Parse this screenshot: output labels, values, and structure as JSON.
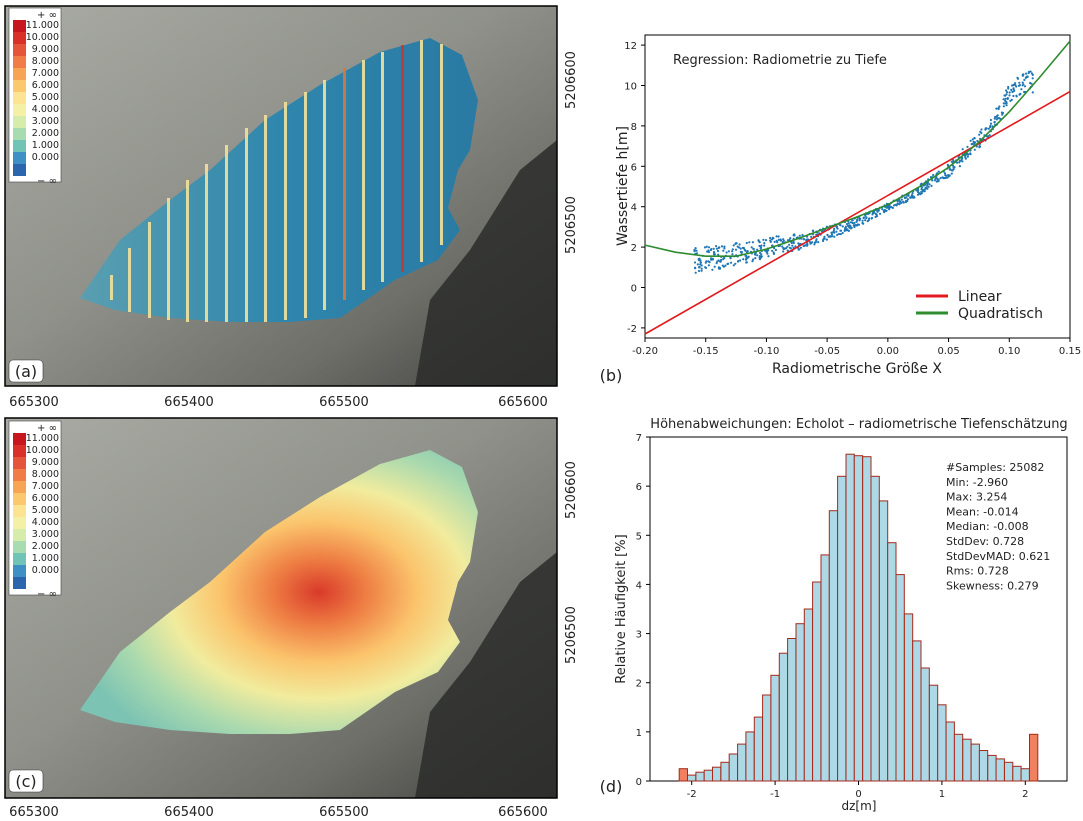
{
  "panel_labels": {
    "a": "(a)",
    "b": "(b)",
    "c": "(c)",
    "d": "(d)"
  },
  "map_axes": {
    "x_ticks": [
      "665300",
      "665400",
      "665500",
      "665600"
    ],
    "y_ticks": [
      "5206600",
      "5206500"
    ]
  },
  "depth_legend": {
    "top_label": "+ ∞",
    "bottom_label": "− ∞",
    "classes": [
      {
        "label": "11.000",
        "color": "#c8161e"
      },
      {
        "label": "10.000",
        "color": "#d9312a"
      },
      {
        "label": "9.000",
        "color": "#e4553a"
      },
      {
        "label": "8.000",
        "color": "#ef7d45"
      },
      {
        "label": "7.000",
        "color": "#f7a555"
      },
      {
        "label": "6.000",
        "color": "#fbc86e"
      },
      {
        "label": "5.000",
        "color": "#fde493"
      },
      {
        "label": "4.000",
        "color": "#f4f0a6"
      },
      {
        "label": "3.000",
        "color": "#d5ecaa"
      },
      {
        "label": "2.000",
        "color": "#a8dbb0"
      },
      {
        "label": "1.000",
        "color": "#6fc4b6"
      },
      {
        "label": "0.000",
        "color": "#3d8fc4"
      },
      {
        "label": "",
        "color": "#2a65ad"
      }
    ]
  },
  "chart_data": [
    {
      "type": "scatter",
      "title": "Regression: Radiometrie zu Tiefe",
      "xlabel": "Radiometrische Größe X",
      "ylabel": "Wassertiefe h[m]",
      "xlim": [
        -0.2,
        0.15
      ],
      "ylim": [
        -2.5,
        12.5
      ],
      "x_ticks": [
        "-0.20",
        "-0.15",
        "-0.10",
        "-0.05",
        "0.00",
        "0.05",
        "0.10",
        "0.15"
      ],
      "y_ticks": [
        "-2",
        "0",
        "2",
        "4",
        "6",
        "8",
        "10",
        "12"
      ],
      "legend_position": "lower-right",
      "series": [
        {
          "name": "Linear",
          "kind": "line",
          "color": "#e31a1c",
          "x": [
            -0.2,
            0.15
          ],
          "y": [
            -2.3,
            9.7
          ]
        },
        {
          "name": "Quadratisch",
          "kind": "line",
          "color": "#2e8b2e",
          "x": [
            -0.2,
            -0.175,
            -0.15,
            -0.125,
            -0.1,
            -0.075,
            -0.05,
            -0.025,
            0.0,
            0.025,
            0.05,
            0.075,
            0.1,
            0.125,
            0.15
          ],
          "y": [
            2.1,
            1.75,
            1.55,
            1.55,
            1.9,
            2.4,
            2.95,
            3.5,
            4.1,
            4.95,
            5.95,
            7.2,
            8.7,
            10.4,
            12.2
          ]
        },
        {
          "kind": "points",
          "color": "#1f77b4",
          "x": [
            -0.16,
            -0.15,
            -0.14,
            -0.13,
            -0.12,
            -0.11,
            -0.1,
            -0.09,
            -0.08,
            -0.07,
            -0.06,
            -0.05,
            -0.04,
            -0.03,
            -0.02,
            -0.01,
            0.0,
            0.01,
            0.02,
            0.03,
            0.04,
            0.05,
            0.06,
            0.07,
            0.08,
            0.09,
            0.1,
            0.11,
            0.12
          ],
          "y": [
            1.3,
            1.4,
            1.5,
            1.6,
            1.7,
            1.8,
            2.0,
            2.1,
            2.2,
            2.3,
            2.5,
            2.7,
            2.9,
            3.1,
            3.4,
            3.7,
            4.0,
            4.3,
            4.6,
            5.0,
            5.4,
            5.8,
            6.4,
            7.0,
            7.6,
            8.5,
            9.6,
            10.1,
            10.2
          ]
        }
      ]
    },
    {
      "type": "bar",
      "title": "Höhenabweichungen: Echolot – radiometrische Tiefenschätzung",
      "xlabel": "dz[m]",
      "ylabel": "Relative Häufigkeit [%]",
      "xlim": [
        -2.5,
        2.5
      ],
      "ylim": [
        0,
        7
      ],
      "x_ticks": [
        "-2",
        "-1",
        "0",
        "1",
        "2"
      ],
      "y_ticks": [
        "0",
        "1",
        "2",
        "3",
        "4",
        "5",
        "6",
        "7"
      ],
      "bin_width": 0.1,
      "bin_centers": [
        -2.1,
        -2.0,
        -1.9,
        -1.8,
        -1.7,
        -1.6,
        -1.5,
        -1.4,
        -1.3,
        -1.2,
        -1.1,
        -1.0,
        -0.9,
        -0.8,
        -0.7,
        -0.6,
        -0.5,
        -0.4,
        -0.3,
        -0.2,
        -0.1,
        0.0,
        0.1,
        0.2,
        0.3,
        0.4,
        0.5,
        0.6,
        0.7,
        0.8,
        0.9,
        1.0,
        1.1,
        1.2,
        1.3,
        1.4,
        1.5,
        1.6,
        1.7,
        1.8,
        1.9,
        2.0,
        2.1
      ],
      "values": [
        0.25,
        0.12,
        0.18,
        0.22,
        0.28,
        0.38,
        0.55,
        0.75,
        1.0,
        1.3,
        1.75,
        2.15,
        2.6,
        2.9,
        3.2,
        3.5,
        4.05,
        4.6,
        5.5,
        6.2,
        6.65,
        6.62,
        6.6,
        6.2,
        5.7,
        4.85,
        4.2,
        3.4,
        2.85,
        2.3,
        1.95,
        1.55,
        1.2,
        0.95,
        0.85,
        0.75,
        0.62,
        0.52,
        0.45,
        0.38,
        0.3,
        0.25,
        0.95
      ],
      "outlier_bins": [
        -2.1,
        2.1
      ],
      "stats": [
        "#Samples: 25082",
        "Min: -2.960",
        "Max: 3.254",
        "Mean: -0.014",
        "Median: -0.008",
        "StdDev: 0.728",
        "StdDevMAD: 0.621",
        "Rms: 0.728",
        "Skewness: 0.279"
      ]
    }
  ]
}
